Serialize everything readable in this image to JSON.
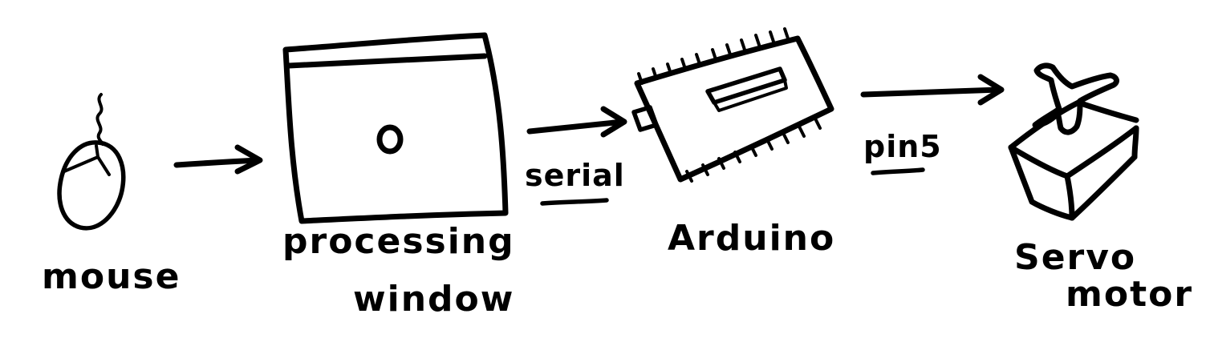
{
  "nodes": {
    "mouse": {
      "label": "mouse"
    },
    "processing_window": {
      "line1": "processing",
      "line2": "window"
    },
    "arduino": {
      "label": "Arduino"
    },
    "servo_motor": {
      "line1": "Servo",
      "line2": "motor"
    }
  },
  "connections": {
    "serial": {
      "label": "serial"
    },
    "pin5": {
      "label": "pin5"
    }
  },
  "colors": {
    "ink": "#000000",
    "background": "#ffffff"
  }
}
